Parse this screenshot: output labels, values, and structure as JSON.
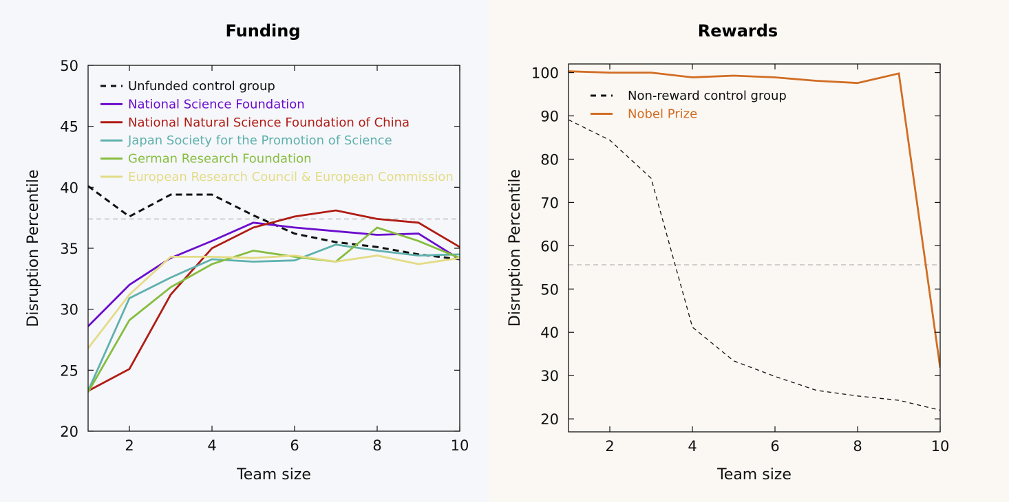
{
  "chart_data": [
    {
      "type": "line",
      "title": "Funding",
      "xlabel": "Team size",
      "ylabel": "Disruption Percentile",
      "xlim": [
        1,
        10
      ],
      "ylim": [
        20,
        50
      ],
      "xticks": [
        2,
        4,
        6,
        8,
        10
      ],
      "yticks": [
        20,
        25,
        30,
        35,
        40,
        45,
        50
      ],
      "grid": false,
      "legend_position": "top-left",
      "reference_line": 37.4,
      "x": [
        1,
        2,
        3,
        4,
        5,
        6,
        7,
        8,
        9,
        10
      ],
      "series": [
        {
          "name": "Unfunded control group",
          "color": "#111111",
          "dash": "dashed",
          "values": [
            40.1,
            37.6,
            39.4,
            39.4,
            37.7,
            36.2,
            35.5,
            35.1,
            34.5,
            34.1
          ]
        },
        {
          "name": "National Science Foundation",
          "color": "#6a0dcc",
          "dash": "solid",
          "values": [
            28.6,
            32.0,
            34.2,
            35.6,
            37.1,
            36.7,
            36.4,
            36.1,
            36.2,
            34.1
          ]
        },
        {
          "name": "National Natural Science Foundation of China",
          "color": "#b01c14",
          "dash": "solid",
          "values": [
            23.3,
            25.1,
            31.2,
            35.0,
            36.7,
            37.6,
            38.1,
            37.4,
            37.1,
            35.1
          ]
        },
        {
          "name": "Japan Society for the Promotion of Science",
          "color": "#5fb1ad",
          "dash": "solid",
          "values": [
            23.3,
            30.9,
            32.6,
            34.1,
            33.9,
            34.0,
            35.3,
            34.8,
            34.4,
            34.5
          ]
        },
        {
          "name": "German Research Foundation",
          "color": "#86bd3f",
          "dash": "solid",
          "values": [
            23.2,
            29.1,
            31.8,
            33.7,
            34.8,
            34.3,
            33.9,
            36.7,
            35.6,
            34.2
          ]
        },
        {
          "name": "European Research Council & European Commission",
          "color": "#e3dc85",
          "dash": "solid",
          "values": [
            26.8,
            31.2,
            34.3,
            34.3,
            34.2,
            34.4,
            33.9,
            34.4,
            33.7,
            34.2
          ]
        }
      ]
    },
    {
      "type": "line",
      "title": "Rewards",
      "xlabel": "Team size",
      "ylabel": "Disruption Percentile",
      "xlim": [
        1,
        10
      ],
      "ylim": [
        17,
        102
      ],
      "xticks": [
        2,
        4,
        6,
        8,
        10
      ],
      "yticks": [
        20,
        30,
        40,
        50,
        60,
        70,
        80,
        90,
        100
      ],
      "grid": false,
      "legend_position": "top-left",
      "reference_line": 55.6,
      "x": [
        1,
        2,
        3,
        4,
        5,
        6,
        7,
        8,
        9,
        10
      ],
      "series": [
        {
          "name": "Non-reward control group",
          "color": "#111111",
          "dash": "dashed",
          "values": [
            89.1,
            84.4,
            75.6,
            41.2,
            33.4,
            29.8,
            26.6,
            25.3,
            24.3,
            22.0
          ]
        },
        {
          "name": "Nobel Prize",
          "color": "#d16d24",
          "dash": "solid",
          "values": [
            100.3,
            100.0,
            100.0,
            98.9,
            99.3,
            98.9,
            98.1,
            97.6,
            99.8,
            31.8
          ]
        }
      ]
    }
  ]
}
